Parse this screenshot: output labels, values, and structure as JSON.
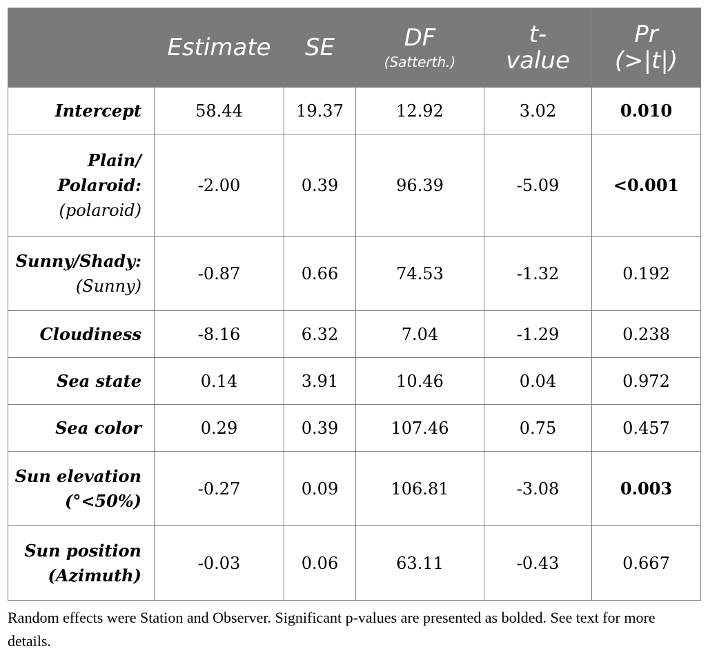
{
  "table": {
    "columns": [
      "",
      "Estimate",
      "SE",
      "DF",
      "t-value",
      "Pr"
    ],
    "column_subs": [
      "",
      "",
      "",
      "(Satterth.)",
      "",
      "(>|t|)"
    ],
    "header_tvalue_lines": [
      "t-",
      "value"
    ],
    "rows": [
      {
        "label": "Intercept",
        "label_sub": "",
        "values": [
          "58.44",
          "19.37",
          "12.92",
          "3.02",
          "0.010"
        ],
        "significant": true
      },
      {
        "label": "Plain/ Polaroid:",
        "label_sub": "(polaroid)",
        "values": [
          "-2.00",
          "0.39",
          "96.39",
          "-5.09",
          "<0.001"
        ],
        "significant": true
      },
      {
        "label": "Sunny/Shady:",
        "label_sub": "(Sunny)",
        "values": [
          "-0.87",
          "0.66",
          "74.53",
          "-1.32",
          "0.192"
        ],
        "significant": false
      },
      {
        "label": "Cloudiness",
        "label_sub": "",
        "values": [
          "-8.16",
          "6.32",
          "7.04",
          "-1.29",
          "0.238"
        ],
        "significant": false
      },
      {
        "label": "Sea state",
        "label_sub": "",
        "values": [
          "0.14",
          "3.91",
          "10.46",
          "0.04",
          "0.972"
        ],
        "significant": false
      },
      {
        "label": "Sea color",
        "label_sub": "",
        "values": [
          "0.29",
          "0.39",
          "107.46",
          "0.75",
          "0.457"
        ],
        "significant": false
      },
      {
        "label": "Sun elevation (°<50%)",
        "label_sub": "",
        "values": [
          "-0.27",
          "0.09",
          "106.81",
          "-3.08",
          "0.003"
        ],
        "significant": true
      },
      {
        "label": "Sun position (Azimuth)",
        "label_sub": "",
        "values": [
          "-0.03",
          "0.06",
          "63.11",
          "-0.43",
          "0.667"
        ],
        "significant": false
      }
    ]
  },
  "footnote": "Random effects were Station and Observer. Significant p-values are presented as bolded. See text for more details.",
  "colors": {
    "header_bg": "#7a7a7a",
    "header_text": "#ffffff",
    "border": "#7f7f7f"
  }
}
